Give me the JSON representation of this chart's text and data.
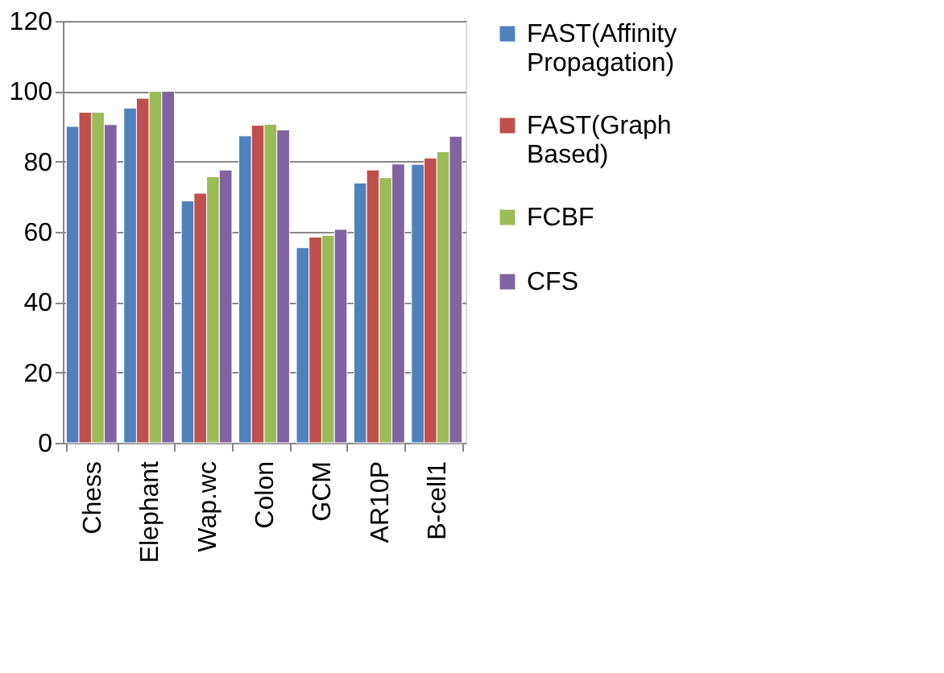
{
  "chart_data": {
    "type": "bar",
    "categories": [
      "Chess",
      "Elephant",
      "Wap.wc",
      "Colon",
      "GCM",
      "AR10P",
      "B-cell1"
    ],
    "series": [
      {
        "name": "FAST(Affinity Propagation)",
        "color": "#4f81bd",
        "values": [
          90,
          95.2,
          68.8,
          87.3,
          55.5,
          73.9,
          79.2
        ]
      },
      {
        "name": "FAST(Graph Based)",
        "color": "#c0504d",
        "values": [
          94,
          98,
          71,
          90.3,
          58.5,
          77.6,
          81
        ]
      },
      {
        "name": "FCBF",
        "color": "#9bbb59",
        "values": [
          94,
          100,
          75.7,
          90.6,
          59,
          75.4,
          82.8
        ]
      },
      {
        "name": "CFS",
        "color": "#8064a2",
        "values": [
          90.5,
          100,
          77.6,
          89,
          60.7,
          79.3,
          87.2
        ]
      }
    ],
    "ylim": [
      0,
      120
    ],
    "yticks": [
      0,
      20,
      40,
      60,
      80,
      100,
      120
    ],
    "grid": "y",
    "legend": "right"
  }
}
